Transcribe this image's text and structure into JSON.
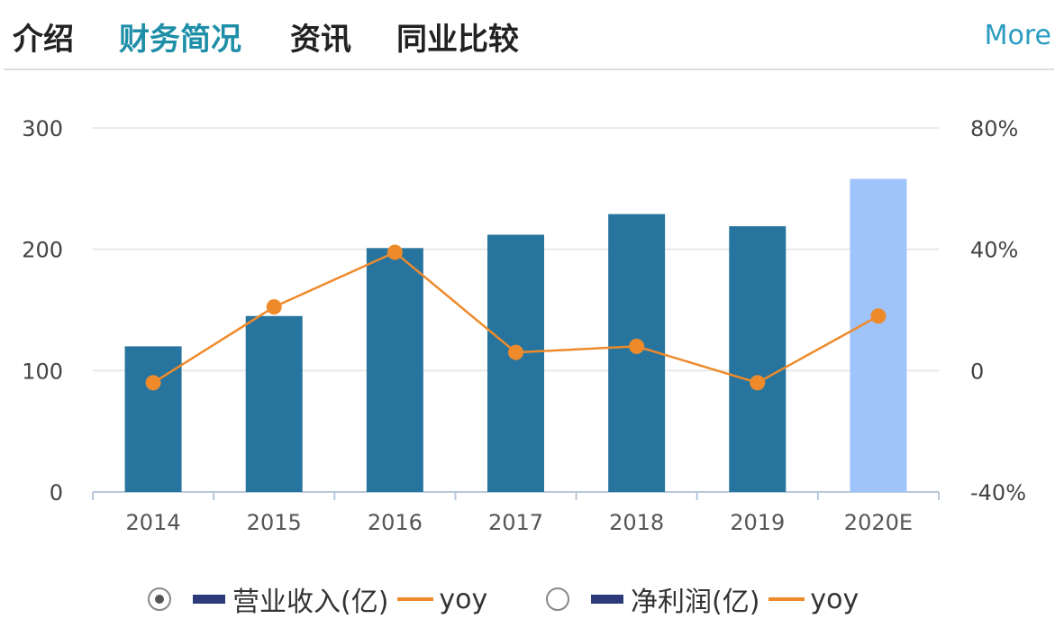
{
  "tabs": [
    {
      "label": "介绍"
    },
    {
      "label": "财务简况"
    },
    {
      "label": "资讯"
    },
    {
      "label": "同业比较"
    }
  ],
  "more_label": "More",
  "colors": {
    "bar": "#27759e",
    "bar_estimate": "#9fc3fb",
    "line": "#ef8a2b",
    "grid": "#e3e3e3",
    "axis": "#b8c8da"
  },
  "chart_data": {
    "type": "bar",
    "categories": [
      "2014",
      "2015",
      "2016",
      "2017",
      "2018",
      "2019",
      "2020E"
    ],
    "series": [
      {
        "name": "营业收入(亿)",
        "axis": "left",
        "type": "bar",
        "values": [
          120,
          145,
          201,
          212,
          229,
          219,
          258
        ]
      },
      {
        "name": "yoy",
        "axis": "right",
        "type": "line",
        "unit": "%",
        "values": [
          -4,
          21,
          39,
          6,
          8,
          -4,
          18
        ]
      }
    ],
    "estimate_categories": [
      "2020E"
    ],
    "left_axis": {
      "ticks": [
        "0",
        "100",
        "200",
        "300"
      ],
      "range": [
        0,
        300
      ]
    },
    "right_axis": {
      "ticks": [
        "-40%",
        "0",
        "40%",
        "80%"
      ],
      "range": [
        -40,
        80
      ]
    },
    "grid": true
  },
  "legend": [
    {
      "selected": true,
      "bar_label": "营业收入(亿)",
      "line_label": "yoy"
    },
    {
      "selected": false,
      "bar_label": "净利润(亿)",
      "line_label": "yoy"
    }
  ]
}
